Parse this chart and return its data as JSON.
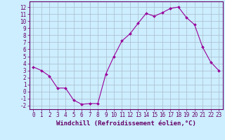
{
  "x": [
    0,
    1,
    2,
    3,
    4,
    5,
    6,
    7,
    8,
    9,
    10,
    11,
    12,
    13,
    14,
    15,
    16,
    17,
    18,
    19,
    20,
    21,
    22,
    23
  ],
  "y": [
    3.5,
    3.0,
    2.2,
    0.5,
    0.5,
    -1.2,
    -1.8,
    -1.7,
    -1.7,
    2.5,
    5.0,
    7.2,
    8.2,
    9.7,
    11.1,
    10.7,
    11.2,
    11.8,
    12.0,
    10.5,
    9.5,
    6.3,
    4.2,
    3.0
  ],
  "line_color": "#990099",
  "marker": "D",
  "marker_size": 2.0,
  "bg_color": "#cceeff",
  "grid_color": "#aabbcc",
  "xlabel": "Windchill (Refroidissement éolien,°C)",
  "ylim": [
    -2.5,
    12.8
  ],
  "xlim": [
    -0.5,
    23.5
  ],
  "yticks": [
    -2,
    -1,
    0,
    1,
    2,
    3,
    4,
    5,
    6,
    7,
    8,
    9,
    10,
    11,
    12
  ],
  "xticks": [
    0,
    1,
    2,
    3,
    4,
    5,
    6,
    7,
    8,
    9,
    10,
    11,
    12,
    13,
    14,
    15,
    16,
    17,
    18,
    19,
    20,
    21,
    22,
    23
  ],
  "axis_color": "#660066",
  "tick_color": "#660066",
  "label_fontsize": 6.5,
  "tick_fontsize": 5.5
}
